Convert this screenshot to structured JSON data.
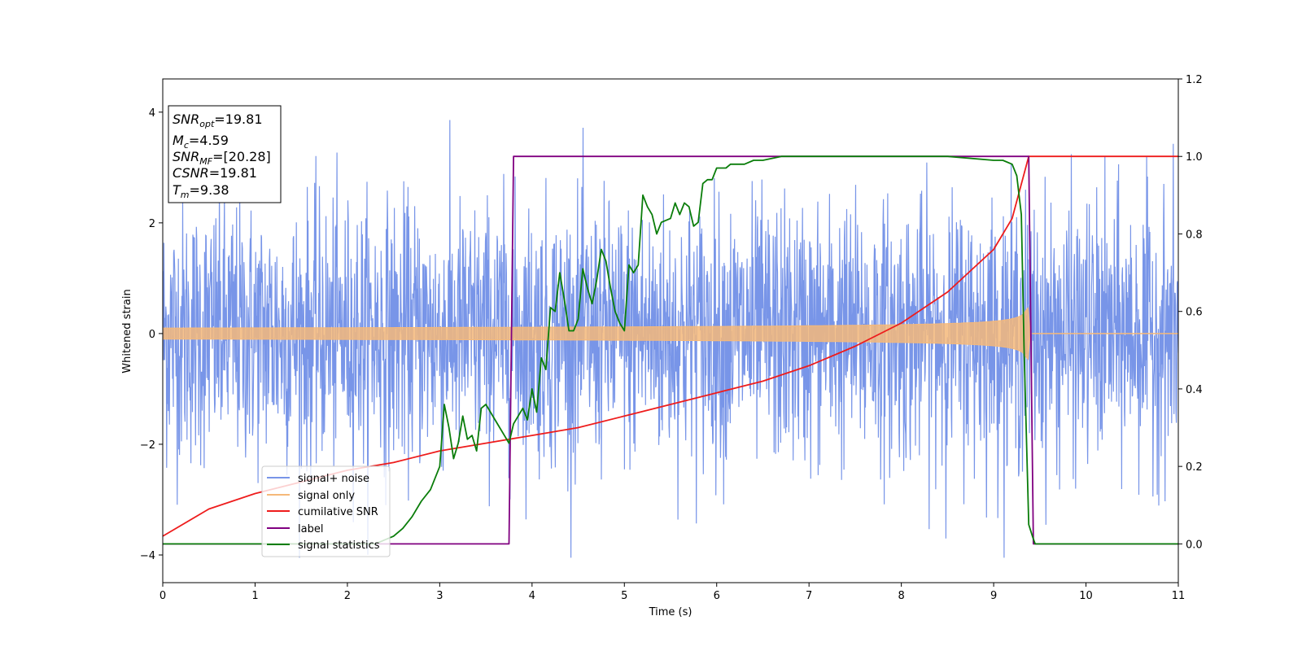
{
  "chart_data": {
    "type": "line",
    "xlabel": "Time (s)",
    "ylabel": "Whitened strain",
    "xlim": [
      0,
      11
    ],
    "ylim_left": [
      -4.5,
      4.6
    ],
    "ylim_right": [
      -0.1,
      1.2
    ],
    "x_ticks": [
      0,
      1,
      2,
      3,
      4,
      5,
      6,
      7,
      8,
      9,
      10,
      11
    ],
    "y_ticks_left": [
      -4,
      -2,
      0,
      2,
      4
    ],
    "y_ticks_right": [
      0.0,
      0.2,
      0.4,
      0.6,
      0.8,
      1.0,
      1.2
    ],
    "grid": false,
    "legend_position": "lower-left",
    "annotations": {
      "snr_opt": {
        "base": "SNR",
        "sub": "opt",
        "value": "=19.81"
      },
      "mc": {
        "base": "M",
        "sub": "c",
        "value": "=4.59"
      },
      "snr_mf": {
        "base": "SNR",
        "sub": "MF",
        "value": "=[20.28]"
      },
      "csnr": {
        "base": "CSNR",
        "sub": "",
        "value": "=19.81"
      },
      "tm": {
        "base": "T",
        "sub": "m",
        "value": "=9.38"
      }
    },
    "series": [
      {
        "name": "signal+ noise",
        "axis": "left",
        "color": "#7895e8",
        "kind": "noise",
        "envelope_max": 4.15,
        "envelope_min": -4.05,
        "typical_amplitude": 1.9
      },
      {
        "name": "signal only",
        "axis": "left",
        "color": "#f5b97a",
        "kind": "chirp",
        "start_amplitude": 0.1,
        "peak_amplitude": 1.0,
        "merger_time": 9.38,
        "end_time": 9.42
      },
      {
        "name": "cumilative SNR",
        "axis": "right",
        "color": "#ee1c1c",
        "x": [
          0,
          0.5,
          1,
          1.5,
          2,
          2.5,
          3,
          3.5,
          4,
          4.5,
          5,
          5.5,
          6,
          6.5,
          7,
          7.5,
          8,
          8.5,
          9,
          9.2,
          9.38,
          9.4,
          11
        ],
        "y": [
          0.02,
          0.09,
          0.13,
          0.16,
          0.19,
          0.21,
          0.24,
          0.26,
          0.28,
          0.3,
          0.33,
          0.36,
          0.39,
          0.42,
          0.46,
          0.51,
          0.57,
          0.65,
          0.76,
          0.84,
          1.0,
          1.0,
          1.0
        ]
      },
      {
        "name": "label",
        "axis": "right",
        "color": "#800080",
        "x": [
          0,
          3.75,
          3.8,
          9.38,
          9.43,
          11
        ],
        "y": [
          0,
          0,
          1,
          1,
          0,
          0
        ]
      },
      {
        "name": "signal statistics",
        "axis": "right",
        "color": "#0a7d0a",
        "x": [
          0,
          0.5,
          1,
          1.5,
          2,
          2.3,
          2.5,
          2.6,
          2.7,
          2.8,
          2.9,
          3.0,
          3.05,
          3.1,
          3.15,
          3.2,
          3.25,
          3.3,
          3.35,
          3.4,
          3.45,
          3.5,
          3.6,
          3.7,
          3.75,
          3.8,
          3.9,
          3.95,
          4.0,
          4.05,
          4.1,
          4.15,
          4.2,
          4.25,
          4.3,
          4.35,
          4.4,
          4.45,
          4.5,
          4.55,
          4.6,
          4.65,
          4.7,
          4.75,
          4.8,
          4.85,
          4.9,
          4.95,
          5.0,
          5.05,
          5.1,
          5.15,
          5.2,
          5.25,
          5.3,
          5.35,
          5.4,
          5.5,
          5.55,
          5.6,
          5.65,
          5.7,
          5.75,
          5.8,
          5.85,
          5.9,
          5.95,
          6.0,
          6.05,
          6.1,
          6.15,
          6.2,
          6.3,
          6.4,
          6.5,
          6.7,
          7.0,
          7.5,
          8.0,
          8.5,
          9.0,
          9.1,
          9.2,
          9.25,
          9.3,
          9.33,
          9.38,
          9.42,
          9.45,
          9.5,
          9.6,
          10,
          11
        ],
        "y": [
          0.0,
          0.0,
          0.0,
          0.0,
          0.0,
          0.0,
          0.02,
          0.04,
          0.07,
          0.11,
          0.14,
          0.2,
          0.36,
          0.3,
          0.22,
          0.26,
          0.33,
          0.27,
          0.28,
          0.24,
          0.35,
          0.36,
          0.32,
          0.28,
          0.26,
          0.31,
          0.35,
          0.32,
          0.4,
          0.34,
          0.48,
          0.45,
          0.61,
          0.6,
          0.7,
          0.63,
          0.55,
          0.55,
          0.58,
          0.71,
          0.66,
          0.62,
          0.68,
          0.76,
          0.73,
          0.66,
          0.6,
          0.57,
          0.55,
          0.72,
          0.7,
          0.72,
          0.9,
          0.87,
          0.85,
          0.8,
          0.83,
          0.84,
          0.88,
          0.85,
          0.88,
          0.87,
          0.82,
          0.83,
          0.93,
          0.94,
          0.94,
          0.97,
          0.97,
          0.97,
          0.98,
          0.98,
          0.98,
          0.99,
          0.99,
          1.0,
          1.0,
          1.0,
          1.0,
          1.0,
          0.99,
          0.99,
          0.98,
          0.95,
          0.85,
          0.5,
          0.05,
          0.02,
          0.0,
          0.0,
          0.0,
          0.0,
          0.0
        ]
      }
    ]
  }
}
